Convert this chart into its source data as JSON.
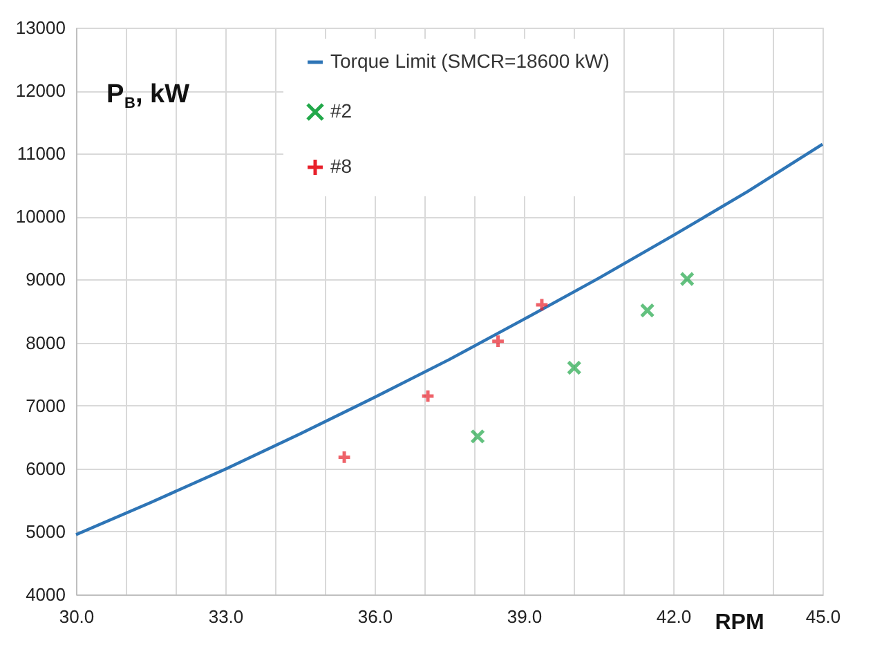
{
  "chart_data": {
    "type": "scatter",
    "xlabel": "RPM",
    "ylabel": "P$_{B}$, kW",
    "xlim": [
      30,
      45
    ],
    "ylim": [
      4000,
      13000
    ],
    "xticks": [
      {
        "value": 30,
        "label": "30.0"
      },
      {
        "value": 31,
        "label": null
      },
      {
        "value": 32,
        "label": null
      },
      {
        "value": 33,
        "label": "33.0"
      },
      {
        "value": 34,
        "label": null
      },
      {
        "value": 35,
        "label": null
      },
      {
        "value": 36,
        "label": "36.0"
      },
      {
        "value": 37,
        "label": null
      },
      {
        "value": 38,
        "label": null
      },
      {
        "value": 39,
        "label": "39.0"
      },
      {
        "value": 40,
        "label": null
      },
      {
        "value": 41,
        "label": null
      },
      {
        "value": 42,
        "label": "42.0"
      },
      {
        "value": 43,
        "label": null
      },
      {
        "value": 44,
        "label": null
      },
      {
        "value": 45,
        "label": "45.0"
      }
    ],
    "yticks": [
      4000,
      5000,
      6000,
      7000,
      8000,
      9000,
      10000,
      11000,
      12000,
      13000
    ],
    "grid": true,
    "legend": "top",
    "series": [
      {
        "name": "Torque Limit (SMCR=18600 kW)",
        "type": "line",
        "color": "#2e75b6",
        "marker": "none",
        "line_style": "solid",
        "x": [
          30,
          31.5,
          33,
          34.5,
          36,
          37.5,
          39,
          40.5,
          42,
          43.5,
          45
        ],
        "values": [
          4950,
          5460,
          5990,
          6550,
          7130,
          7730,
          8370,
          9020,
          9700,
          10400,
          11150
        ]
      },
      {
        "name": "#2",
        "type": "scatter",
        "color": "#22a84a",
        "marker": "x",
        "x": [
          38.07,
          40.01,
          41.48,
          42.28
        ],
        "values": [
          6510,
          7600,
          8510,
          9010
        ]
      },
      {
        "name": "#8",
        "type": "scatter",
        "color": "#e8202a",
        "marker": "cross",
        "x": [
          35.39,
          37.07,
          38.48,
          39.36
        ],
        "values": [
          6180,
          7150,
          8020,
          8600
        ]
      }
    ]
  }
}
